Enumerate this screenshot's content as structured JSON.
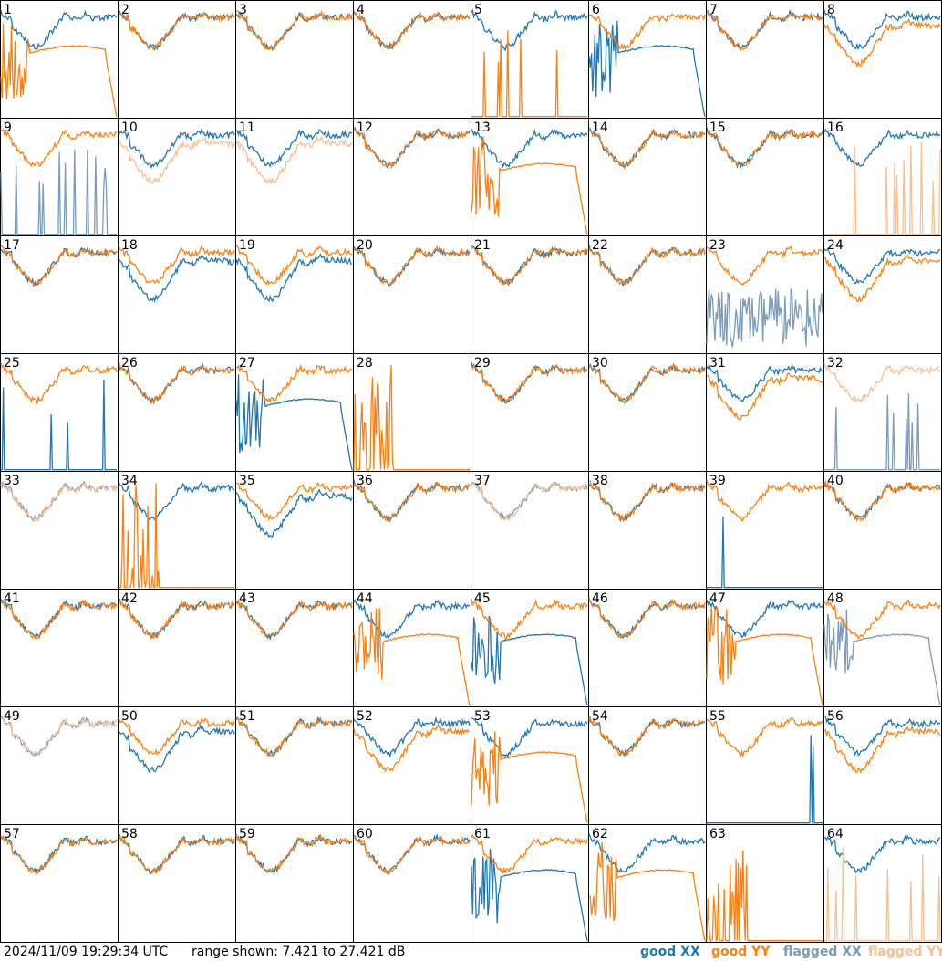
{
  "timestamp": "2024/11/09 19:29:34 UTC",
  "range_text": "range shown: 7.421 to 27.421 dB",
  "legend": {
    "good_xx": "good XX",
    "good_yy": "good YY",
    "flagged_xx": "flagged XX",
    "flagged_yy": "flagged YY"
  },
  "colors": {
    "good_xx": "#1f77b4",
    "good_yy": "#ff7f0e",
    "flagged_xx": "#7a9cba",
    "flagged_yy": "#f5c093"
  },
  "chart_data": {
    "type": "line",
    "grid": "8x8 small multiples",
    "y_range_db": [
      7.421,
      27.421
    ],
    "panels": [
      {
        "label": "1",
        "xx": "good",
        "yy": "good",
        "xx_shape": "normal",
        "yy_shape": "dropout"
      },
      {
        "label": "2",
        "xx": "good",
        "yy": "good",
        "xx_shape": "normal",
        "yy_shape": "normal"
      },
      {
        "label": "3",
        "xx": "good",
        "yy": "good",
        "xx_shape": "normal",
        "yy_shape": "normal"
      },
      {
        "label": "4",
        "xx": "good",
        "yy": "good",
        "xx_shape": "normal",
        "yy_shape": "normal"
      },
      {
        "label": "5",
        "xx": "good",
        "yy": "good",
        "xx_shape": "normal",
        "yy_shape": "floor"
      },
      {
        "label": "6",
        "xx": "good",
        "yy": "good",
        "xx_shape": "dropout",
        "yy_shape": "normal"
      },
      {
        "label": "7",
        "xx": "good",
        "yy": "good",
        "xx_shape": "normal",
        "yy_shape": "normal"
      },
      {
        "label": "8",
        "xx": "good",
        "yy": "good",
        "xx_shape": "normal",
        "yy_shape": "low"
      },
      {
        "label": "9",
        "xx": "flagged",
        "yy": "good",
        "xx_shape": "floor",
        "yy_shape": "normal"
      },
      {
        "label": "10",
        "xx": "good",
        "yy": "flagged",
        "xx_shape": "normal",
        "yy_shape": "low"
      },
      {
        "label": "11",
        "xx": "good",
        "yy": "flagged",
        "xx_shape": "normal",
        "yy_shape": "low"
      },
      {
        "label": "12",
        "xx": "good",
        "yy": "good",
        "xx_shape": "normal",
        "yy_shape": "normal"
      },
      {
        "label": "13",
        "xx": "good",
        "yy": "good",
        "xx_shape": "normal",
        "yy_shape": "dropout"
      },
      {
        "label": "14",
        "xx": "good",
        "yy": "good",
        "xx_shape": "normal",
        "yy_shape": "normal"
      },
      {
        "label": "15",
        "xx": "good",
        "yy": "good",
        "xx_shape": "normal",
        "yy_shape": "normal"
      },
      {
        "label": "16",
        "xx": "good",
        "yy": "flagged",
        "xx_shape": "normal",
        "yy_shape": "floor"
      },
      {
        "label": "17",
        "xx": "good",
        "yy": "good",
        "xx_shape": "normal",
        "yy_shape": "normal"
      },
      {
        "label": "18",
        "xx": "good",
        "yy": "good",
        "xx_shape": "low",
        "yy_shape": "normal"
      },
      {
        "label": "19",
        "xx": "good",
        "yy": "good",
        "xx_shape": "low",
        "yy_shape": "normal"
      },
      {
        "label": "20",
        "xx": "good",
        "yy": "good",
        "xx_shape": "normal",
        "yy_shape": "normal"
      },
      {
        "label": "21",
        "xx": "good",
        "yy": "good",
        "xx_shape": "normal",
        "yy_shape": "normal"
      },
      {
        "label": "22",
        "xx": "good",
        "yy": "good",
        "xx_shape": "normal",
        "yy_shape": "normal"
      },
      {
        "label": "23",
        "xx": "flagged",
        "yy": "good",
        "xx_shape": "noisy",
        "yy_shape": "normal"
      },
      {
        "label": "24",
        "xx": "good",
        "yy": "good",
        "xx_shape": "normal",
        "yy_shape": "low"
      },
      {
        "label": "25",
        "xx": "good",
        "yy": "good",
        "xx_shape": "floor",
        "yy_shape": "normal"
      },
      {
        "label": "26",
        "xx": "good",
        "yy": "good",
        "xx_shape": "normal",
        "yy_shape": "normal"
      },
      {
        "label": "27",
        "xx": "good",
        "yy": "good",
        "xx_shape": "dropout",
        "yy_shape": "normal"
      },
      {
        "label": "28",
        "xx": "good",
        "yy": "good",
        "xx_shape": "none",
        "yy_shape": "spiky"
      },
      {
        "label": "29",
        "xx": "good",
        "yy": "good",
        "xx_shape": "normal",
        "yy_shape": "normal"
      },
      {
        "label": "30",
        "xx": "good",
        "yy": "good",
        "xx_shape": "normal",
        "yy_shape": "normal"
      },
      {
        "label": "31",
        "xx": "good",
        "yy": "good",
        "xx_shape": "normal",
        "yy_shape": "low"
      },
      {
        "label": "32",
        "xx": "flagged",
        "yy": "flagged",
        "xx_shape": "floor",
        "yy_shape": "normal"
      },
      {
        "label": "33",
        "xx": "flagged",
        "yy": "flagged",
        "xx_shape": "normal",
        "yy_shape": "normal"
      },
      {
        "label": "34",
        "xx": "good",
        "yy": "good",
        "xx_shape": "normal",
        "yy_shape": "spiky"
      },
      {
        "label": "35",
        "xx": "good",
        "yy": "good",
        "xx_shape": "low",
        "yy_shape": "normal"
      },
      {
        "label": "36",
        "xx": "good",
        "yy": "good",
        "xx_shape": "normal",
        "yy_shape": "normal"
      },
      {
        "label": "37",
        "xx": "flagged",
        "yy": "flagged",
        "xx_shape": "normal",
        "yy_shape": "normal"
      },
      {
        "label": "38",
        "xx": "good",
        "yy": "good",
        "xx_shape": "normal",
        "yy_shape": "normal"
      },
      {
        "label": "39",
        "xx": "good",
        "yy": "good",
        "xx_shape": "floor",
        "yy_shape": "normal"
      },
      {
        "label": "40",
        "xx": "good",
        "yy": "good",
        "xx_shape": "normal",
        "yy_shape": "normal"
      },
      {
        "label": "41",
        "xx": "good",
        "yy": "good",
        "xx_shape": "normal",
        "yy_shape": "normal"
      },
      {
        "label": "42",
        "xx": "good",
        "yy": "good",
        "xx_shape": "normal",
        "yy_shape": "normal"
      },
      {
        "label": "43",
        "xx": "good",
        "yy": "good",
        "xx_shape": "normal",
        "yy_shape": "normal"
      },
      {
        "label": "44",
        "xx": "good",
        "yy": "good",
        "xx_shape": "normal",
        "yy_shape": "dropout"
      },
      {
        "label": "45",
        "xx": "good",
        "yy": "good",
        "xx_shape": "dropout",
        "yy_shape": "normal"
      },
      {
        "label": "46",
        "xx": "good",
        "yy": "good",
        "xx_shape": "normal",
        "yy_shape": "normal"
      },
      {
        "label": "47",
        "xx": "good",
        "yy": "good",
        "xx_shape": "normal",
        "yy_shape": "dropout"
      },
      {
        "label": "48",
        "xx": "flagged",
        "yy": "good",
        "xx_shape": "dropout",
        "yy_shape": "normal"
      },
      {
        "label": "49",
        "xx": "flagged",
        "yy": "flagged",
        "xx_shape": "normal",
        "yy_shape": "normal"
      },
      {
        "label": "50",
        "xx": "good",
        "yy": "good",
        "xx_shape": "low",
        "yy_shape": "normal"
      },
      {
        "label": "51",
        "xx": "good",
        "yy": "good",
        "xx_shape": "normal",
        "yy_shape": "normal"
      },
      {
        "label": "52",
        "xx": "good",
        "yy": "good",
        "xx_shape": "normal",
        "yy_shape": "low"
      },
      {
        "label": "53",
        "xx": "good",
        "yy": "good",
        "xx_shape": "normal",
        "yy_shape": "dropout"
      },
      {
        "label": "54",
        "xx": "good",
        "yy": "good",
        "xx_shape": "normal",
        "yy_shape": "normal"
      },
      {
        "label": "55",
        "xx": "good",
        "yy": "good",
        "xx_shape": "floor",
        "yy_shape": "normal"
      },
      {
        "label": "56",
        "xx": "good",
        "yy": "good",
        "xx_shape": "normal",
        "yy_shape": "low"
      },
      {
        "label": "57",
        "xx": "good",
        "yy": "good",
        "xx_shape": "normal",
        "yy_shape": "normal"
      },
      {
        "label": "58",
        "xx": "good",
        "yy": "good",
        "xx_shape": "normal",
        "yy_shape": "normal"
      },
      {
        "label": "59",
        "xx": "good",
        "yy": "good",
        "xx_shape": "normal",
        "yy_shape": "normal"
      },
      {
        "label": "60",
        "xx": "good",
        "yy": "good",
        "xx_shape": "normal",
        "yy_shape": "normal"
      },
      {
        "label": "61",
        "xx": "good",
        "yy": "good",
        "xx_shape": "dropout",
        "yy_shape": "normal"
      },
      {
        "label": "62",
        "xx": "good",
        "yy": "good",
        "xx_shape": "normal",
        "yy_shape": "dropout"
      },
      {
        "label": "63",
        "xx": "good",
        "yy": "good",
        "xx_shape": "none",
        "yy_shape": "spiky"
      },
      {
        "label": "64",
        "xx": "good",
        "yy": "flagged",
        "xx_shape": "normal",
        "yy_shape": "floor"
      }
    ]
  }
}
